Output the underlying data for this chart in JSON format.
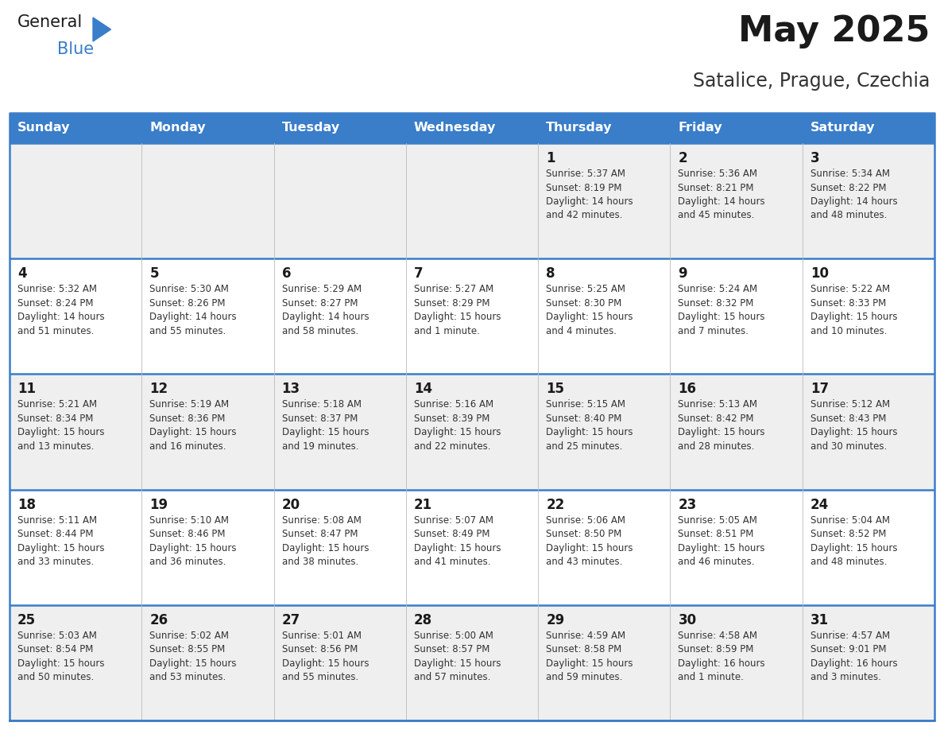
{
  "title": "May 2025",
  "subtitle": "Satalice, Prague, Czechia",
  "header_color": "#3A7DC9",
  "header_text_color": "#FFFFFF",
  "day_names": [
    "Sunday",
    "Monday",
    "Tuesday",
    "Wednesday",
    "Thursday",
    "Friday",
    "Saturday"
  ],
  "bg_color_odd": "#EFEFEF",
  "bg_color_even": "#FFFFFF",
  "text_color": "#333333",
  "line_color": "#3A7DC9",
  "calendar": [
    [
      {
        "day": "",
        "sunrise": "",
        "sunset": "",
        "daylight": ""
      },
      {
        "day": "",
        "sunrise": "",
        "sunset": "",
        "daylight": ""
      },
      {
        "day": "",
        "sunrise": "",
        "sunset": "",
        "daylight": ""
      },
      {
        "day": "",
        "sunrise": "",
        "sunset": "",
        "daylight": ""
      },
      {
        "day": "1",
        "sunrise": "5:37 AM",
        "sunset": "8:19 PM",
        "daylight": "14 hours and 42 minutes."
      },
      {
        "day": "2",
        "sunrise": "5:36 AM",
        "sunset": "8:21 PM",
        "daylight": "14 hours and 45 minutes."
      },
      {
        "day": "3",
        "sunrise": "5:34 AM",
        "sunset": "8:22 PM",
        "daylight": "14 hours and 48 minutes."
      }
    ],
    [
      {
        "day": "4",
        "sunrise": "5:32 AM",
        "sunset": "8:24 PM",
        "daylight": "14 hours and 51 minutes."
      },
      {
        "day": "5",
        "sunrise": "5:30 AM",
        "sunset": "8:26 PM",
        "daylight": "14 hours and 55 minutes."
      },
      {
        "day": "6",
        "sunrise": "5:29 AM",
        "sunset": "8:27 PM",
        "daylight": "14 hours and 58 minutes."
      },
      {
        "day": "7",
        "sunrise": "5:27 AM",
        "sunset": "8:29 PM",
        "daylight": "15 hours and 1 minute."
      },
      {
        "day": "8",
        "sunrise": "5:25 AM",
        "sunset": "8:30 PM",
        "daylight": "15 hours and 4 minutes."
      },
      {
        "day": "9",
        "sunrise": "5:24 AM",
        "sunset": "8:32 PM",
        "daylight": "15 hours and 7 minutes."
      },
      {
        "day": "10",
        "sunrise": "5:22 AM",
        "sunset": "8:33 PM",
        "daylight": "15 hours and 10 minutes."
      }
    ],
    [
      {
        "day": "11",
        "sunrise": "5:21 AM",
        "sunset": "8:34 PM",
        "daylight": "15 hours and 13 minutes."
      },
      {
        "day": "12",
        "sunrise": "5:19 AM",
        "sunset": "8:36 PM",
        "daylight": "15 hours and 16 minutes."
      },
      {
        "day": "13",
        "sunrise": "5:18 AM",
        "sunset": "8:37 PM",
        "daylight": "15 hours and 19 minutes."
      },
      {
        "day": "14",
        "sunrise": "5:16 AM",
        "sunset": "8:39 PM",
        "daylight": "15 hours and 22 minutes."
      },
      {
        "day": "15",
        "sunrise": "5:15 AM",
        "sunset": "8:40 PM",
        "daylight": "15 hours and 25 minutes."
      },
      {
        "day": "16",
        "sunrise": "5:13 AM",
        "sunset": "8:42 PM",
        "daylight": "15 hours and 28 minutes."
      },
      {
        "day": "17",
        "sunrise": "5:12 AM",
        "sunset": "8:43 PM",
        "daylight": "15 hours and 30 minutes."
      }
    ],
    [
      {
        "day": "18",
        "sunrise": "5:11 AM",
        "sunset": "8:44 PM",
        "daylight": "15 hours and 33 minutes."
      },
      {
        "day": "19",
        "sunrise": "5:10 AM",
        "sunset": "8:46 PM",
        "daylight": "15 hours and 36 minutes."
      },
      {
        "day": "20",
        "sunrise": "5:08 AM",
        "sunset": "8:47 PM",
        "daylight": "15 hours and 38 minutes."
      },
      {
        "day": "21",
        "sunrise": "5:07 AM",
        "sunset": "8:49 PM",
        "daylight": "15 hours and 41 minutes."
      },
      {
        "day": "22",
        "sunrise": "5:06 AM",
        "sunset": "8:50 PM",
        "daylight": "15 hours and 43 minutes."
      },
      {
        "day": "23",
        "sunrise": "5:05 AM",
        "sunset": "8:51 PM",
        "daylight": "15 hours and 46 minutes."
      },
      {
        "day": "24",
        "sunrise": "5:04 AM",
        "sunset": "8:52 PM",
        "daylight": "15 hours and 48 minutes."
      }
    ],
    [
      {
        "day": "25",
        "sunrise": "5:03 AM",
        "sunset": "8:54 PM",
        "daylight": "15 hours and 50 minutes."
      },
      {
        "day": "26",
        "sunrise": "5:02 AM",
        "sunset": "8:55 PM",
        "daylight": "15 hours and 53 minutes."
      },
      {
        "day": "27",
        "sunrise": "5:01 AM",
        "sunset": "8:56 PM",
        "daylight": "15 hours and 55 minutes."
      },
      {
        "day": "28",
        "sunrise": "5:00 AM",
        "sunset": "8:57 PM",
        "daylight": "15 hours and 57 minutes."
      },
      {
        "day": "29",
        "sunrise": "4:59 AM",
        "sunset": "8:58 PM",
        "daylight": "15 hours and 59 minutes."
      },
      {
        "day": "30",
        "sunrise": "4:58 AM",
        "sunset": "8:59 PM",
        "daylight": "16 hours and 1 minute."
      },
      {
        "day": "31",
        "sunrise": "4:57 AM",
        "sunset": "9:01 PM",
        "daylight": "16 hours and 3 minutes."
      }
    ]
  ],
  "fig_width": 11.88,
  "fig_height": 9.18,
  "dpi": 100
}
